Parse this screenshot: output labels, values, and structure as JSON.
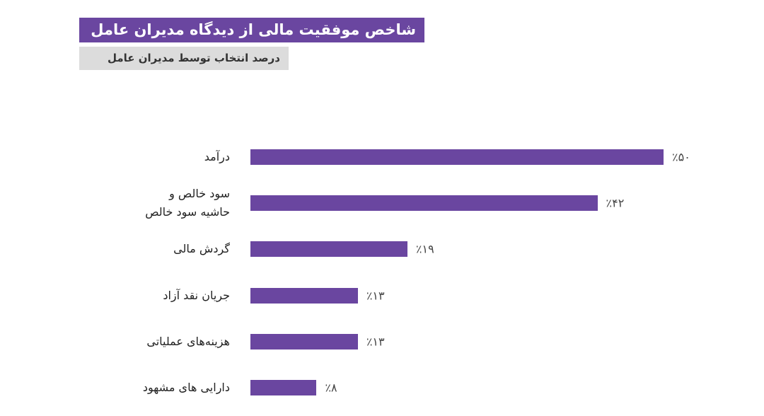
{
  "chart_data": {
    "type": "bar",
    "orientation": "horizontal",
    "title": "شاخص موفقیت مالی از دیدگاه مدیران عامل",
    "subtitle": "درصد انتخاب توسط مدیران عامل",
    "categories": [
      "درآمد",
      "سود خالص و\nحاشیه سود خالص",
      "گردش مالی",
      "جریان نقد آزاد",
      "هزینه‌های عملیاتی",
      "دارایی های مشهود"
    ],
    "values": [
      50,
      42,
      19,
      13,
      13,
      8
    ],
    "value_labels": [
      "٪۵۰",
      "٪۴۲",
      "٪۱۹",
      "٪۱۳",
      "٪۱۳",
      "٪۸"
    ],
    "color": "#6a46a0"
  }
}
